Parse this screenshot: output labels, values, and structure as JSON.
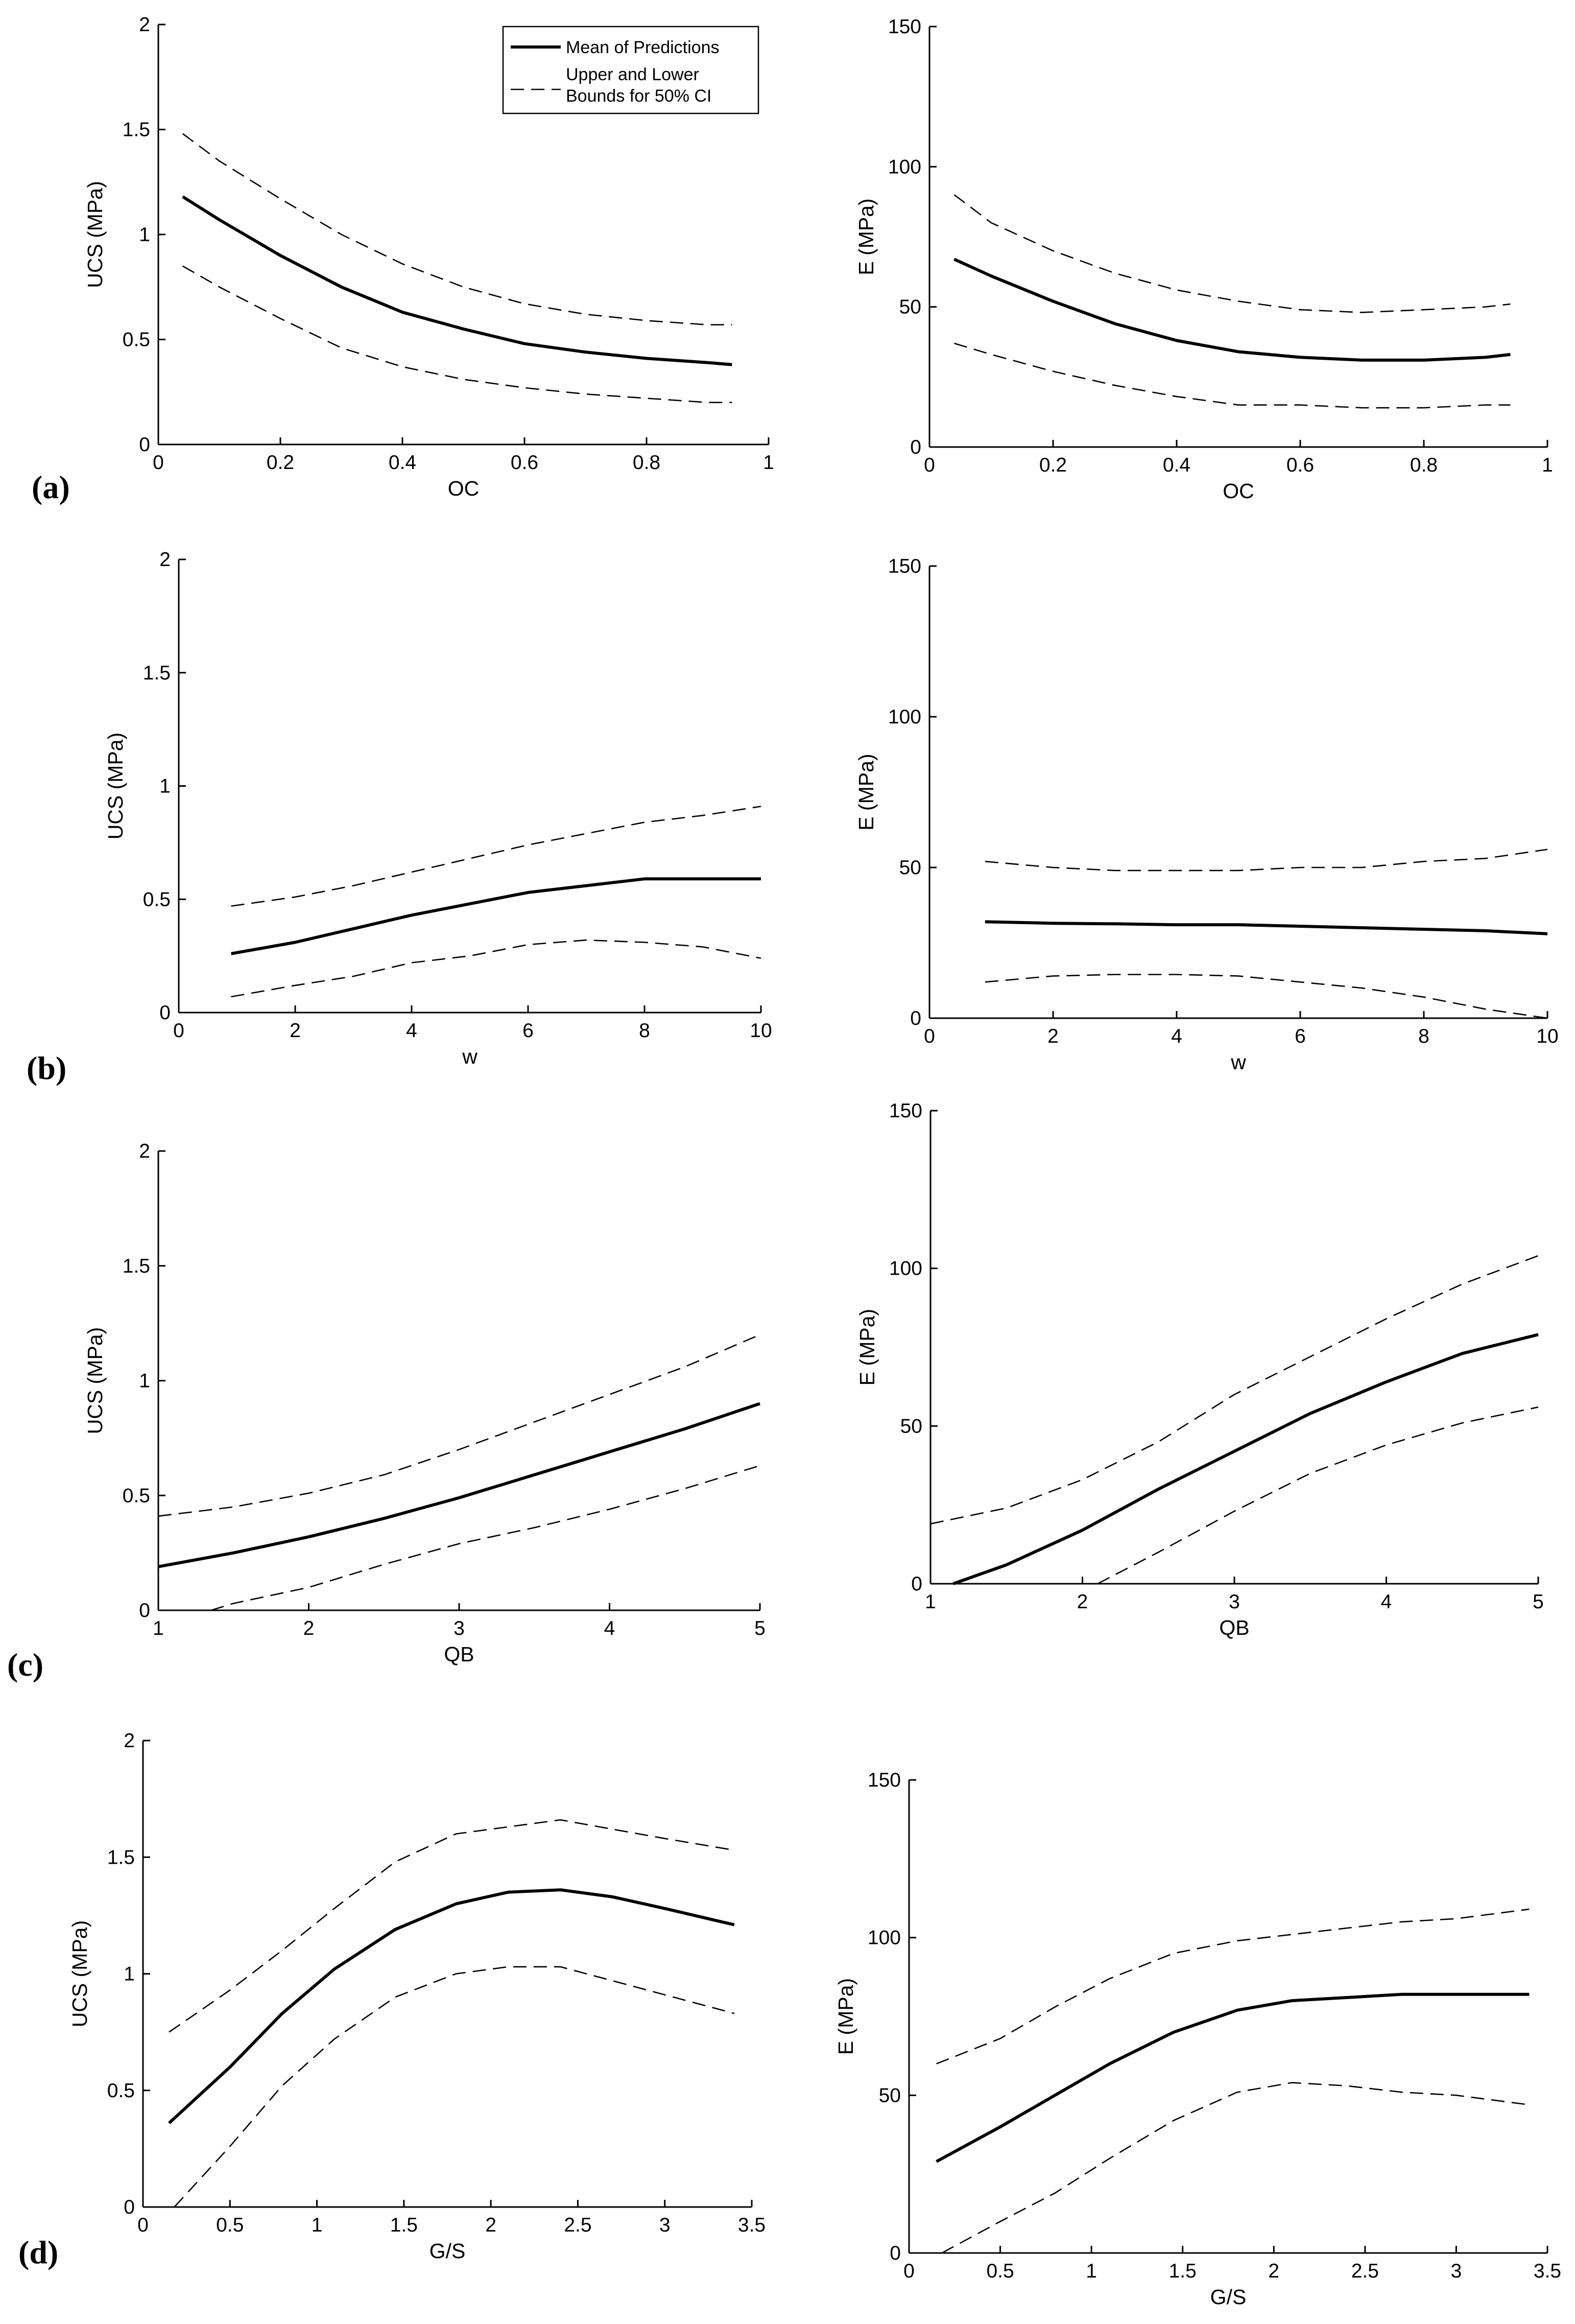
{
  "panel_labels": [
    "(a)",
    "(b)",
    "(c)",
    "(d)"
  ],
  "legend": {
    "mean_label": "Mean of Predictions",
    "bounds_label_line1": "Upper and Lower",
    "bounds_label_line2": "Bounds for 50% CI"
  },
  "chart_data": [
    {
      "id": "a-ucs",
      "type": "line",
      "xlabel": "OC",
      "ylabel": "UCS (MPa)",
      "xlim": [
        0,
        1
      ],
      "ylim": [
        0,
        2
      ],
      "xticks": [
        0,
        0.2,
        0.4,
        0.6,
        0.8,
        1
      ],
      "xtick_labels": [
        "0",
        "0.2",
        "0.4",
        "0.6",
        "0.8",
        "1"
      ],
      "yticks": [
        0,
        0.5,
        1,
        1.5,
        2
      ],
      "ytick_labels": [
        "0",
        "0.5",
        "1",
        "1.5",
        "2"
      ],
      "series": [
        {
          "name": "Mean of Predictions",
          "style": "solid",
          "x": [
            0.04,
            0.1,
            0.2,
            0.3,
            0.4,
            0.5,
            0.6,
            0.7,
            0.8,
            0.9,
            0.94
          ],
          "y": [
            1.18,
            1.07,
            0.9,
            0.75,
            0.63,
            0.55,
            0.48,
            0.44,
            0.41,
            0.39,
            0.38
          ]
        },
        {
          "name": "Upper Bound (50% CI)",
          "style": "dashed",
          "x": [
            0.04,
            0.1,
            0.2,
            0.3,
            0.4,
            0.5,
            0.6,
            0.7,
            0.8,
            0.9,
            0.94
          ],
          "y": [
            1.48,
            1.35,
            1.17,
            1.0,
            0.86,
            0.75,
            0.67,
            0.62,
            0.59,
            0.57,
            0.57
          ]
        },
        {
          "name": "Lower Bound (50% CI)",
          "style": "dashed",
          "x": [
            0.04,
            0.1,
            0.2,
            0.3,
            0.4,
            0.5,
            0.6,
            0.7,
            0.8,
            0.9,
            0.94
          ],
          "y": [
            0.85,
            0.75,
            0.6,
            0.46,
            0.37,
            0.31,
            0.27,
            0.24,
            0.22,
            0.2,
            0.2
          ]
        }
      ]
    },
    {
      "id": "a-e",
      "type": "line",
      "xlabel": "OC",
      "ylabel": "E (MPa)",
      "xlim": [
        0,
        1
      ],
      "ylim": [
        0,
        150
      ],
      "xticks": [
        0,
        0.2,
        0.4,
        0.6,
        0.8,
        1
      ],
      "xtick_labels": [
        "0",
        "0.2",
        "0.4",
        "0.6",
        "0.8",
        "1"
      ],
      "yticks": [
        0,
        50,
        100,
        150
      ],
      "ytick_labels": [
        "0",
        "50",
        "100",
        "150"
      ],
      "series": [
        {
          "name": "Mean of Predictions",
          "style": "solid",
          "x": [
            0.04,
            0.1,
            0.2,
            0.3,
            0.4,
            0.5,
            0.6,
            0.7,
            0.8,
            0.9,
            0.94
          ],
          "y": [
            67,
            61,
            52,
            44,
            38,
            34,
            32,
            31,
            31,
            32,
            33
          ]
        },
        {
          "name": "Upper Bound (50% CI)",
          "style": "dashed",
          "x": [
            0.04,
            0.1,
            0.2,
            0.3,
            0.4,
            0.5,
            0.6,
            0.7,
            0.8,
            0.9,
            0.94
          ],
          "y": [
            90,
            80,
            70,
            62,
            56,
            52,
            49,
            48,
            49,
            50,
            51
          ]
        },
        {
          "name": "Lower Bound (50% CI)",
          "style": "dashed",
          "x": [
            0.04,
            0.1,
            0.2,
            0.3,
            0.4,
            0.5,
            0.6,
            0.7,
            0.8,
            0.9,
            0.94
          ],
          "y": [
            37,
            33,
            27,
            22,
            18,
            15,
            15,
            14,
            14,
            15,
            15
          ]
        }
      ]
    },
    {
      "id": "b-ucs",
      "type": "line",
      "xlabel": "w",
      "ylabel": "UCS (MPa)",
      "xlim": [
        0,
        10
      ],
      "ylim": [
        0,
        2
      ],
      "xticks": [
        0,
        2,
        4,
        6,
        8,
        10
      ],
      "xtick_labels": [
        "0",
        "2",
        "4",
        "6",
        "8",
        "10"
      ],
      "yticks": [
        0,
        0.5,
        1,
        1.5,
        2
      ],
      "ytick_labels": [
        "0",
        "0.5",
        "1",
        "1.5",
        "2"
      ],
      "series": [
        {
          "name": "Mean of Predictions",
          "style": "solid",
          "x": [
            0.9,
            2,
            3,
            4,
            5,
            6,
            7,
            8,
            9,
            10
          ],
          "y": [
            0.26,
            0.31,
            0.37,
            0.43,
            0.48,
            0.53,
            0.56,
            0.59,
            0.59,
            0.59
          ]
        },
        {
          "name": "Upper Bound (50% CI)",
          "style": "dashed",
          "x": [
            0.9,
            2,
            3,
            4,
            5,
            6,
            7,
            8,
            9,
            10
          ],
          "y": [
            0.47,
            0.51,
            0.56,
            0.62,
            0.68,
            0.74,
            0.79,
            0.84,
            0.87,
            0.91
          ]
        },
        {
          "name": "Lower Bound (50% CI)",
          "style": "dashed",
          "x": [
            0.9,
            2,
            3,
            4,
            5,
            6,
            7,
            8,
            9,
            10
          ],
          "y": [
            0.07,
            0.12,
            0.16,
            0.22,
            0.25,
            0.3,
            0.32,
            0.31,
            0.29,
            0.24
          ]
        }
      ]
    },
    {
      "id": "b-e",
      "type": "line",
      "xlabel": "w",
      "ylabel": "E (MPa)",
      "xlim": [
        0,
        10
      ],
      "ylim": [
        0,
        150
      ],
      "xticks": [
        0,
        2,
        4,
        6,
        8,
        10
      ],
      "xtick_labels": [
        "0",
        "2",
        "4",
        "6",
        "8",
        "10"
      ],
      "yticks": [
        0,
        50,
        100,
        150
      ],
      "ytick_labels": [
        "0",
        "50",
        "100",
        "150"
      ],
      "series": [
        {
          "name": "Mean of Predictions",
          "style": "solid",
          "x": [
            0.9,
            2,
            3,
            4,
            5,
            6,
            7,
            8,
            9,
            10
          ],
          "y": [
            32,
            31.5,
            31.3,
            31,
            31,
            30.5,
            30,
            29.5,
            29,
            28
          ]
        },
        {
          "name": "Upper Bound (50% CI)",
          "style": "dashed",
          "x": [
            0.9,
            2,
            3,
            4,
            5,
            6,
            7,
            8,
            9,
            10
          ],
          "y": [
            52,
            50,
            49,
            49,
            49,
            50,
            50,
            52,
            53,
            56
          ]
        },
        {
          "name": "Lower Bound (50% CI)",
          "style": "dashed",
          "x": [
            0.9,
            2,
            3,
            4,
            5,
            6,
            7,
            8,
            9,
            10
          ],
          "y": [
            12,
            14,
            14.5,
            14.5,
            14,
            12,
            10,
            7,
            3,
            0
          ]
        }
      ]
    },
    {
      "id": "c-ucs",
      "type": "line",
      "xlabel": "QB",
      "ylabel": "UCS (MPa)",
      "xlim": [
        1,
        5
      ],
      "ylim": [
        0,
        2
      ],
      "xticks": [
        1,
        2,
        3,
        4,
        5
      ],
      "xtick_labels": [
        "1",
        "2",
        "3",
        "4",
        "5"
      ],
      "yticks": [
        0,
        0.5,
        1,
        1.5,
        2
      ],
      "ytick_labels": [
        "0",
        "0.5",
        "1",
        "1.5",
        "2"
      ],
      "series": [
        {
          "name": "Mean of Predictions",
          "style": "solid",
          "x": [
            1,
            1.5,
            2,
            2.5,
            3,
            3.5,
            4,
            4.5,
            5
          ],
          "y": [
            0.19,
            0.25,
            0.32,
            0.4,
            0.49,
            0.59,
            0.69,
            0.79,
            0.9
          ]
        },
        {
          "name": "Upper Bound (50% CI)",
          "style": "dashed",
          "x": [
            1,
            1.5,
            2,
            2.5,
            3,
            3.5,
            4,
            4.5,
            5
          ],
          "y": [
            0.41,
            0.45,
            0.51,
            0.59,
            0.7,
            0.82,
            0.94,
            1.06,
            1.2
          ]
        },
        {
          "name": "Lower Bound (50% CI)",
          "style": "dashed",
          "x": [
            1.35,
            1.5,
            2,
            2.5,
            3,
            3.5,
            4,
            4.5,
            5
          ],
          "y": [
            0,
            0.03,
            0.1,
            0.2,
            0.29,
            0.36,
            0.44,
            0.53,
            0.63
          ]
        }
      ]
    },
    {
      "id": "c-e",
      "type": "line",
      "xlabel": "QB",
      "ylabel": "E (MPa)",
      "xlim": [
        1,
        5
      ],
      "ylim": [
        0,
        150
      ],
      "xticks": [
        1,
        2,
        3,
        4,
        5
      ],
      "xtick_labels": [
        "1",
        "2",
        "3",
        "4",
        "5"
      ],
      "yticks": [
        0,
        50,
        100,
        150
      ],
      "ytick_labels": [
        "0",
        "50",
        "100",
        "150"
      ],
      "series": [
        {
          "name": "Mean of Predictions",
          "style": "solid",
          "x": [
            1.15,
            1.5,
            2,
            2.5,
            3,
            3.5,
            4,
            4.5,
            5
          ],
          "y": [
            0,
            6,
            17,
            30,
            42,
            54,
            64,
            73,
            79
          ]
        },
        {
          "name": "Upper Bound (50% CI)",
          "style": "dashed",
          "x": [
            1,
            1.5,
            2,
            2.5,
            3,
            3.5,
            4,
            4.5,
            5
          ],
          "y": [
            19,
            24,
            33,
            45,
            60,
            72,
            84,
            95,
            104
          ]
        },
        {
          "name": "Lower Bound (50% CI)",
          "style": "dashed",
          "x": [
            2.1,
            2.5,
            3,
            3.5,
            4,
            4.5,
            5
          ],
          "y": [
            0,
            10,
            23,
            35,
            44,
            51,
            56
          ]
        }
      ]
    },
    {
      "id": "d-ucs",
      "type": "line",
      "xlabel": "G/S",
      "ylabel": "UCS (MPa)",
      "xlim": [
        0,
        3.5
      ],
      "ylim": [
        0,
        2
      ],
      "xticks": [
        0,
        0.5,
        1,
        1.5,
        2,
        2.5,
        3,
        3.5
      ],
      "xtick_labels": [
        "0",
        "0.5",
        "1",
        "1.5",
        "2",
        "2.5",
        "3",
        "3.5"
      ],
      "yticks": [
        0,
        0.5,
        1,
        1.5,
        2
      ],
      "ytick_labels": [
        "0",
        "0.5",
        "1",
        "1.5",
        "2"
      ],
      "series": [
        {
          "name": "Mean of Predictions",
          "style": "solid",
          "x": [
            0.15,
            0.5,
            0.8,
            1.1,
            1.45,
            1.8,
            2.1,
            2.4,
            2.7,
            3.0,
            3.4
          ],
          "y": [
            0.36,
            0.6,
            0.83,
            1.02,
            1.19,
            1.3,
            1.35,
            1.36,
            1.33,
            1.28,
            1.21
          ]
        },
        {
          "name": "Upper Bound (50% CI)",
          "style": "dashed",
          "x": [
            0.15,
            0.5,
            0.8,
            1.1,
            1.45,
            1.8,
            2.1,
            2.4,
            2.7,
            3.0,
            3.4
          ],
          "y": [
            0.75,
            0.93,
            1.1,
            1.28,
            1.48,
            1.6,
            1.63,
            1.66,
            1.62,
            1.58,
            1.53
          ]
        },
        {
          "name": "Lower Bound (50% CI)",
          "style": "dashed",
          "x": [
            0.18,
            0.5,
            0.8,
            1.1,
            1.45,
            1.8,
            2.1,
            2.4,
            2.7,
            3.0,
            3.4
          ],
          "y": [
            0,
            0.26,
            0.52,
            0.72,
            0.9,
            1.0,
            1.03,
            1.03,
            0.97,
            0.91,
            0.83
          ]
        }
      ]
    },
    {
      "id": "d-e",
      "type": "line",
      "xlabel": "G/S",
      "ylabel": "E (MPa)",
      "xlim": [
        0,
        3.5
      ],
      "ylim": [
        0,
        150
      ],
      "xticks": [
        0,
        0.5,
        1,
        1.5,
        2,
        2.5,
        3,
        3.5
      ],
      "xtick_labels": [
        "0",
        "0.5",
        "1",
        "1.5",
        "2",
        "2.5",
        "3",
        "3.5"
      ],
      "yticks": [
        0,
        50,
        100,
        150
      ],
      "ytick_labels": [
        "0",
        "50",
        "100",
        "150"
      ],
      "series": [
        {
          "name": "Mean of Predictions",
          "style": "solid",
          "x": [
            0.15,
            0.5,
            0.8,
            1.1,
            1.45,
            1.8,
            2.1,
            2.4,
            2.7,
            3.0,
            3.4
          ],
          "y": [
            29,
            40,
            50,
            60,
            70,
            77,
            80,
            81,
            82,
            82,
            82
          ]
        },
        {
          "name": "Upper Bound (50% CI)",
          "style": "dashed",
          "x": [
            0.15,
            0.5,
            0.8,
            1.1,
            1.45,
            1.8,
            2.1,
            2.4,
            2.7,
            3.0,
            3.4
          ],
          "y": [
            60,
            68,
            78,
            87,
            95,
            99,
            101,
            103,
            105,
            106,
            109
          ]
        },
        {
          "name": "Lower Bound (50% CI)",
          "style": "dashed",
          "x": [
            0.18,
            0.5,
            0.8,
            1.1,
            1.45,
            1.8,
            2.1,
            2.4,
            2.7,
            3.0,
            3.4
          ],
          "y": [
            0,
            10,
            19,
            30,
            42,
            51,
            54,
            53,
            51,
            50,
            47
          ]
        }
      ]
    }
  ]
}
